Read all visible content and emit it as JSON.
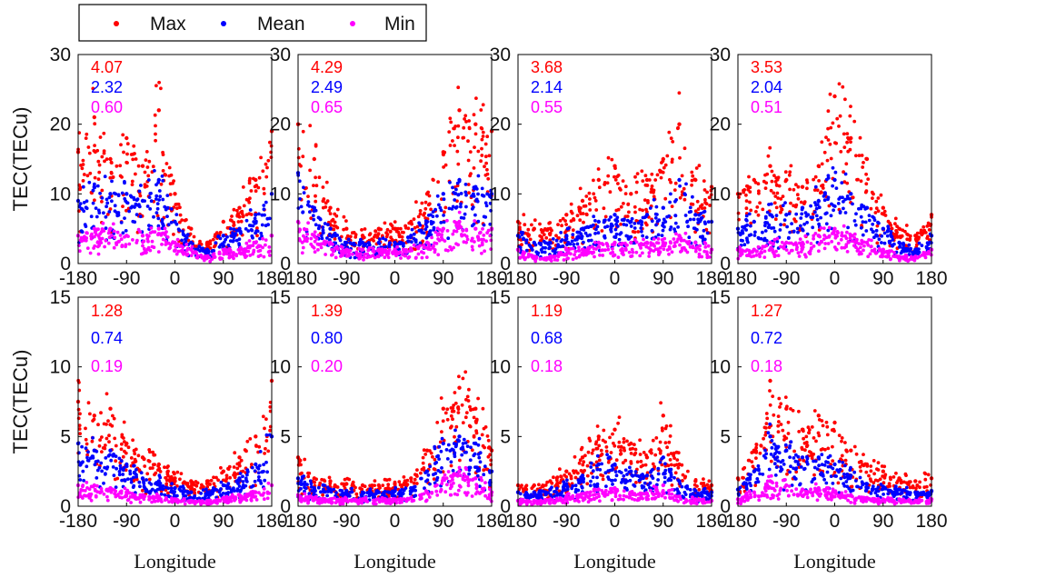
{
  "legend": {
    "entries": [
      {
        "label": "Max",
        "color": "#ff0000"
      },
      {
        "label": "Mean",
        "color": "#0000ff"
      },
      {
        "label": "Min",
        "color": "#ff00ff"
      }
    ]
  },
  "colors": {
    "max": "#ff0000",
    "mean": "#0000ff",
    "min": "#ff00ff"
  },
  "chart_data": [
    {
      "type": "scatter",
      "row": 0,
      "col": 0,
      "xlabel": "",
      "ylabel": "TEC(TECu)",
      "xlim": [
        -180,
        180
      ],
      "ylim": [
        0,
        30
      ],
      "xticks": [
        "-180",
        "-90",
        "0",
        "90",
        "180"
      ],
      "yticks": [
        "0",
        "10",
        "20",
        "30"
      ],
      "stats": {
        "max": "4.07",
        "mean": "2.32",
        "min": "0.60"
      },
      "series": [
        {
          "name": "Max",
          "x": [
            -180,
            -150,
            -120,
            -90,
            -60,
            -30,
            0,
            30,
            60,
            90,
            120,
            150,
            180
          ],
          "y": [
            16,
            21,
            15,
            18,
            14,
            22,
            10,
            5,
            3,
            6,
            8,
            12,
            19
          ]
        },
        {
          "name": "Mean",
          "x": [
            -180,
            -150,
            -120,
            -90,
            -60,
            -30,
            0,
            30,
            60,
            90,
            120,
            150,
            180
          ],
          "y": [
            9,
            11,
            10,
            10,
            9,
            12,
            6,
            3,
            2,
            4,
            5,
            7,
            10
          ]
        },
        {
          "name": "Min",
          "x": [
            -180,
            -150,
            -120,
            -90,
            -60,
            -30,
            0,
            30,
            60,
            90,
            120,
            150,
            180
          ],
          "y": [
            4,
            5,
            5,
            4,
            4,
            5,
            3,
            2,
            1,
            2,
            2,
            3,
            4
          ]
        }
      ]
    },
    {
      "type": "scatter",
      "row": 0,
      "col": 1,
      "xlabel": "",
      "ylabel": "",
      "xlim": [
        -180,
        180
      ],
      "ylim": [
        0,
        30
      ],
      "xticks": [
        "-180",
        "-90",
        "0",
        "90",
        "180"
      ],
      "yticks": [
        "0",
        "10",
        "20",
        "30"
      ],
      "stats": {
        "max": "4.29",
        "mean": "2.49",
        "min": "0.65"
      },
      "series": [
        {
          "name": "Max",
          "x": [
            -180,
            -150,
            -120,
            -90,
            -60,
            -30,
            0,
            30,
            60,
            90,
            120,
            150,
            180
          ],
          "y": [
            20,
            15,
            8,
            5,
            4,
            5,
            5,
            6,
            10,
            16,
            22,
            20,
            19
          ]
        },
        {
          "name": "Mean",
          "x": [
            -180,
            -150,
            -120,
            -90,
            -60,
            -30,
            0,
            30,
            60,
            90,
            120,
            150,
            180
          ],
          "y": [
            13,
            8,
            5,
            3,
            3,
            3,
            3,
            4,
            6,
            10,
            12,
            11,
            10
          ]
        },
        {
          "name": "Min",
          "x": [
            -180,
            -150,
            -120,
            -90,
            -60,
            -30,
            0,
            30,
            60,
            90,
            120,
            150,
            180
          ],
          "y": [
            6,
            4,
            3,
            2,
            2,
            2,
            2,
            2,
            3,
            5,
            6,
            5,
            5
          ]
        }
      ]
    },
    {
      "type": "scatter",
      "row": 0,
      "col": 2,
      "xlabel": "",
      "ylabel": "",
      "xlim": [
        -180,
        180
      ],
      "ylim": [
        0,
        30
      ],
      "xticks": [
        "-180",
        "-90",
        "0",
        "90",
        "180"
      ],
      "yticks": [
        "0",
        "10",
        "20",
        "30"
      ],
      "stats": {
        "max": "3.68",
        "mean": "2.14",
        "min": "0.55"
      },
      "series": [
        {
          "name": "Max",
          "x": [
            -180,
            -150,
            -120,
            -90,
            -60,
            -30,
            0,
            30,
            60,
            90,
            120,
            150,
            180
          ],
          "y": [
            6,
            5,
            5,
            7,
            9,
            12,
            14,
            10,
            12,
            15,
            20,
            12,
            11
          ]
        },
        {
          "name": "Mean",
          "x": [
            -180,
            -150,
            -120,
            -90,
            -60,
            -30,
            0,
            30,
            60,
            90,
            120,
            150,
            180
          ],
          "y": [
            4,
            3,
            3,
            4,
            5,
            6,
            7,
            6,
            7,
            8,
            12,
            7,
            6
          ]
        },
        {
          "name": "Min",
          "x": [
            -180,
            -150,
            -120,
            -90,
            -60,
            -30,
            0,
            30,
            60,
            90,
            120,
            150,
            180
          ],
          "y": [
            2,
            1,
            1,
            2,
            2,
            3,
            3,
            3,
            3,
            3,
            4,
            3,
            2
          ]
        }
      ]
    },
    {
      "type": "scatter",
      "row": 0,
      "col": 3,
      "xlabel": "",
      "ylabel": "",
      "xlim": [
        -180,
        180
      ],
      "ylim": [
        0,
        30
      ],
      "xticks": [
        "-180",
        "-90",
        "0",
        "90",
        "180"
      ],
      "yticks": [
        "0",
        "10",
        "20",
        "30"
      ],
      "stats": {
        "max": "3.53",
        "mean": "2.04",
        "min": "0.51"
      },
      "series": [
        {
          "name": "Max",
          "x": [
            -180,
            -150,
            -120,
            -90,
            -60,
            -30,
            0,
            30,
            60,
            90,
            120,
            150,
            180
          ],
          "y": [
            10,
            12,
            14,
            12,
            11,
            14,
            24,
            18,
            15,
            8,
            5,
            4,
            7
          ]
        },
        {
          "name": "Mean",
          "x": [
            -180,
            -150,
            -120,
            -90,
            -60,
            -30,
            0,
            30,
            60,
            90,
            120,
            150,
            180
          ],
          "y": [
            5,
            6,
            7,
            7,
            8,
            9,
            12,
            10,
            8,
            5,
            3,
            2,
            4
          ]
        },
        {
          "name": "Min",
          "x": [
            -180,
            -150,
            -120,
            -90,
            -60,
            -30,
            0,
            30,
            60,
            90,
            120,
            150,
            180
          ],
          "y": [
            2,
            2,
            3,
            3,
            3,
            4,
            5,
            4,
            3,
            2,
            1,
            1,
            2
          ]
        }
      ]
    },
    {
      "type": "scatter",
      "row": 1,
      "col": 0,
      "xlabel": "Longitude",
      "ylabel": "TEC(TECu)",
      "xlim": [
        -180,
        180
      ],
      "ylim": [
        0,
        15
      ],
      "xticks": [
        "-180",
        "-90",
        "0",
        "90",
        "180"
      ],
      "yticks": [
        "0",
        "5",
        "10",
        "15"
      ],
      "stats": {
        "max": "1.28",
        "mean": "0.74",
        "min": "0.19"
      },
      "series": [
        {
          "name": "Max",
          "x": [
            -180,
            -150,
            -120,
            -90,
            -60,
            -30,
            0,
            30,
            60,
            90,
            120,
            150,
            180
          ],
          "y": [
            7.5,
            6.5,
            7,
            4.5,
            3.5,
            3,
            2,
            1.8,
            1.8,
            2.5,
            3.5,
            5,
            9
          ]
        },
        {
          "name": "Mean",
          "x": [
            -180,
            -150,
            -120,
            -90,
            -60,
            -30,
            0,
            30,
            60,
            90,
            120,
            150,
            180
          ],
          "y": [
            4.5,
            4,
            4,
            3,
            2,
            1.8,
            1.3,
            1,
            1,
            1.5,
            2,
            3,
            5
          ]
        },
        {
          "name": "Min",
          "x": [
            -180,
            -150,
            -120,
            -90,
            -60,
            -30,
            0,
            30,
            60,
            90,
            120,
            150,
            180
          ],
          "y": [
            1.5,
            1.5,
            1.3,
            1,
            0.8,
            0.7,
            0.5,
            0.4,
            0.4,
            0.6,
            0.8,
            1,
            1.5
          ]
        }
      ]
    },
    {
      "type": "scatter",
      "row": 1,
      "col": 1,
      "xlabel": "Longitude",
      "ylabel": "",
      "xlim": [
        -180,
        180
      ],
      "ylim": [
        0,
        15
      ],
      "xticks": [
        "-180",
        "-90",
        "0",
        "90",
        "180"
      ],
      "yticks": [
        "0",
        "5",
        "10",
        "15"
      ],
      "stats": {
        "max": "1.39",
        "mean": "0.80",
        "min": "0.20"
      },
      "series": [
        {
          "name": "Max",
          "x": [
            -180,
            -150,
            -120,
            -90,
            -60,
            -30,
            0,
            30,
            60,
            90,
            120,
            150,
            180
          ],
          "y": [
            3.5,
            2,
            1.8,
            1.6,
            1.5,
            1.5,
            1.6,
            2,
            4,
            7,
            8.5,
            7,
            4
          ]
        },
        {
          "name": "Mean",
          "x": [
            -180,
            -150,
            -120,
            -90,
            -60,
            -30,
            0,
            30,
            60,
            90,
            120,
            150,
            180
          ],
          "y": [
            2,
            1.3,
            1.2,
            1.1,
            1,
            1,
            1.1,
            1.3,
            2.5,
            4.5,
            5,
            4.5,
            2.5
          ]
        },
        {
          "name": "Min",
          "x": [
            -180,
            -150,
            -120,
            -90,
            -60,
            -30,
            0,
            30,
            60,
            90,
            120,
            150,
            180
          ],
          "y": [
            0.8,
            0.6,
            0.5,
            0.5,
            0.5,
            0.5,
            0.5,
            0.6,
            1,
            2,
            2.5,
            2,
            1
          ]
        }
      ]
    },
    {
      "type": "scatter",
      "row": 1,
      "col": 2,
      "xlabel": "Longitude",
      "ylabel": "",
      "xlim": [
        -180,
        180
      ],
      "ylim": [
        0,
        15
      ],
      "xticks": [
        "-180",
        "-90",
        "0",
        "90",
        "180"
      ],
      "yticks": [
        "0",
        "5",
        "10",
        "15"
      ],
      "stats": {
        "max": "1.19",
        "mean": "0.68",
        "min": "0.18"
      },
      "series": [
        {
          "name": "Max",
          "x": [
            -180,
            -150,
            -120,
            -90,
            -60,
            -30,
            0,
            30,
            60,
            90,
            120,
            150,
            180
          ],
          "y": [
            1.5,
            1.5,
            1.8,
            2.5,
            3.5,
            5,
            5.5,
            4.5,
            3.5,
            6.5,
            3,
            1.8,
            1.5
          ]
        },
        {
          "name": "Mean",
          "x": [
            -180,
            -150,
            -120,
            -90,
            -60,
            -30,
            0,
            30,
            60,
            90,
            120,
            150,
            180
          ],
          "y": [
            1,
            1,
            1.2,
            1.6,
            2.2,
            3,
            3,
            2.5,
            2.2,
            3.5,
            1.8,
            1.1,
            1
          ]
        },
        {
          "name": "Min",
          "x": [
            -180,
            -150,
            -120,
            -90,
            -60,
            -30,
            0,
            30,
            60,
            90,
            120,
            150,
            180
          ],
          "y": [
            0.4,
            0.4,
            0.5,
            0.7,
            0.9,
            1.2,
            1.3,
            1,
            0.9,
            1.5,
            0.7,
            0.5,
            0.4
          ]
        }
      ]
    },
    {
      "type": "scatter",
      "row": 1,
      "col": 3,
      "xlabel": "Longitude",
      "ylabel": "",
      "xlim": [
        -180,
        180
      ],
      "ylim": [
        0,
        15
      ],
      "xticks": [
        "-180",
        "-90",
        "0",
        "90",
        "180"
      ],
      "yticks": [
        "0",
        "5",
        "10",
        "15"
      ],
      "stats": {
        "max": "1.27",
        "mean": "0.72",
        "min": "0.18"
      },
      "series": [
        {
          "name": "Max",
          "x": [
            -180,
            -150,
            -120,
            -90,
            -60,
            -30,
            0,
            30,
            60,
            90,
            120,
            150,
            180
          ],
          "y": [
            2,
            4,
            9,
            7,
            5.5,
            6.5,
            6,
            4,
            3,
            2.5,
            2,
            1.8,
            2
          ]
        },
        {
          "name": "Mean",
          "x": [
            -180,
            -150,
            -120,
            -90,
            -60,
            -30,
            0,
            30,
            60,
            90,
            120,
            150,
            180
          ],
          "y": [
            1.2,
            2.5,
            5,
            4,
            3.5,
            3.5,
            3,
            2.2,
            1.6,
            1.4,
            1.2,
            1,
            1.1
          ]
        },
        {
          "name": "Min",
          "x": [
            -180,
            -150,
            -120,
            -90,
            -60,
            -30,
            0,
            30,
            60,
            90,
            120,
            150,
            180
          ],
          "y": [
            0.5,
            1,
            1.8,
            1.5,
            1.2,
            1.3,
            1,
            0.8,
            0.6,
            0.5,
            0.5,
            0.4,
            0.5
          ]
        }
      ]
    }
  ]
}
